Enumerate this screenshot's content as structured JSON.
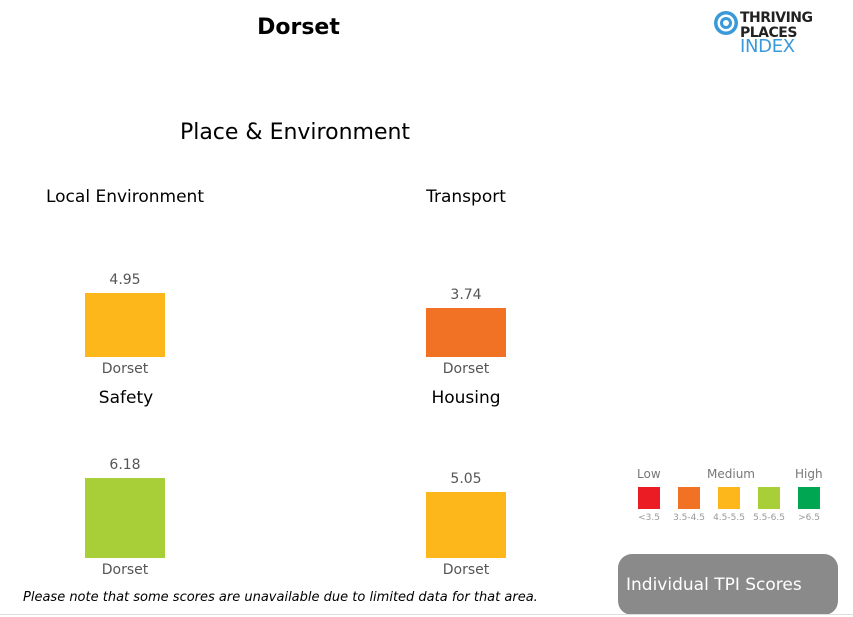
{
  "page_title": "Dorset",
  "logo": {
    "line1": "THRIVING",
    "line2": "PLACES",
    "line3": "INDEX"
  },
  "section_title": "Place & Environment",
  "chart_data": [
    {
      "type": "bar",
      "title": "Local Environment",
      "categories": [
        "Dorset"
      ],
      "values": [
        4.95
      ],
      "value_labels": [
        "4.95"
      ],
      "color": "#fdb71a"
    },
    {
      "type": "bar",
      "title": "Transport",
      "categories": [
        "Dorset"
      ],
      "values": [
        3.74
      ],
      "value_labels": [
        "3.74"
      ],
      "color": "#f17125"
    },
    {
      "type": "bar",
      "title": "Safety",
      "categories": [
        "Dorset"
      ],
      "values": [
        6.18
      ],
      "value_labels": [
        "6.18"
      ],
      "color": "#a8cf38"
    },
    {
      "type": "bar",
      "title": "Housing",
      "categories": [
        "Dorset"
      ],
      "values": [
        5.05
      ],
      "value_labels": [
        "5.05"
      ],
      "color": "#fdb71a"
    }
  ],
  "legend": {
    "low": "Low",
    "medium": "Medium",
    "high": "High",
    "items": [
      {
        "range": "<3.5",
        "color": "#ec1c24"
      },
      {
        "range": "3.5-4.5",
        "color": "#f17125"
      },
      {
        "range": "4.5-5.5",
        "color": "#fdb71a"
      },
      {
        "range": "5.5-6.5",
        "color": "#a8cf38"
      },
      {
        "range": ">6.5",
        "color": "#00a651"
      }
    ]
  },
  "footnote": "Please note that some scores are unavailable due to limited data for that area.",
  "button_label": "Individual TPI Scores"
}
